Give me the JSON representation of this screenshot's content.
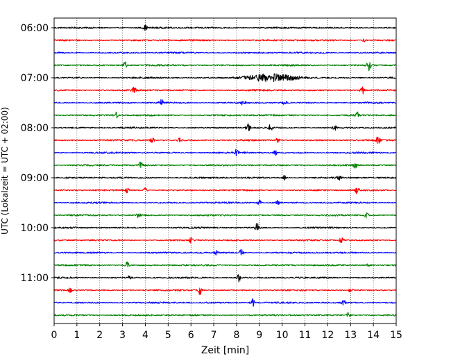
{
  "chart_data": {
    "type": "line",
    "xlabel": "Zeit  [min]",
    "ylabel": "UTC (Lokalzeit = UTC + 02:00)",
    "xlim": [
      0,
      15
    ],
    "x_ticks": [
      "0",
      "1",
      "2",
      "3",
      "4",
      "5",
      "6",
      "7",
      "8",
      "9",
      "10",
      "11",
      "12",
      "13",
      "14",
      "15"
    ],
    "y_tick_labels": [
      "06:00",
      "07:00",
      "08:00",
      "09:00",
      "10:00",
      "11:00"
    ],
    "grid": "vertical-dotted",
    "trace_colors": [
      "#000000",
      "#ff0000",
      "#0000ff",
      "#008000"
    ],
    "traces": [
      {
        "start": "06:00",
        "color": "#000000",
        "events": [
          {
            "t": 4.0,
            "a": 0.4
          }
        ]
      },
      {
        "start": "06:15",
        "color": "#ff0000",
        "events": [
          {
            "t": 13.6,
            "a": 0.3
          }
        ]
      },
      {
        "start": "06:30",
        "color": "#0000ff",
        "events": []
      },
      {
        "start": "06:45",
        "color": "#008000",
        "events": [
          {
            "t": 3.1,
            "a": 0.7
          },
          {
            "t": 13.8,
            "a": 0.9
          }
        ]
      },
      {
        "start": "07:00",
        "color": "#000000",
        "events": [
          {
            "t": 9.5,
            "a": 0.6,
            "w": 1.2
          }
        ]
      },
      {
        "start": "07:15",
        "color": "#ff0000",
        "events": [
          {
            "t": 3.5,
            "a": 0.6
          },
          {
            "t": 13.5,
            "a": 0.9
          }
        ]
      },
      {
        "start": "07:30",
        "color": "#0000ff",
        "events": [
          {
            "t": 4.7,
            "a": 0.6
          },
          {
            "t": 8.3,
            "a": 0.5
          },
          {
            "t": 10.1,
            "a": 0.4
          }
        ]
      },
      {
        "start": "07:45",
        "color": "#008000",
        "events": [
          {
            "t": 2.7,
            "a": 0.6
          },
          {
            "t": 13.3,
            "a": 0.5
          }
        ]
      },
      {
        "start": "08:00",
        "color": "#000000",
        "events": [
          {
            "t": 8.5,
            "a": 0.9
          },
          {
            "t": 9.5,
            "a": 0.7
          },
          {
            "t": 12.3,
            "a": 0.4
          }
        ]
      },
      {
        "start": "08:15",
        "color": "#ff0000",
        "events": [
          {
            "t": 4.3,
            "a": 0.5
          },
          {
            "t": 5.5,
            "a": 0.4
          },
          {
            "t": 9.8,
            "a": 0.4
          },
          {
            "t": 14.2,
            "a": 0.6
          }
        ]
      },
      {
        "start": "08:30",
        "color": "#0000ff",
        "events": [
          {
            "t": 8.0,
            "a": 0.6
          },
          {
            "t": 9.7,
            "a": 0.4
          }
        ]
      },
      {
        "start": "08:45",
        "color": "#008000",
        "events": [
          {
            "t": 3.8,
            "a": 0.6
          },
          {
            "t": 13.2,
            "a": 0.4
          }
        ]
      },
      {
        "start": "09:00",
        "color": "#000000",
        "events": [
          {
            "t": 10.1,
            "a": 0.4
          },
          {
            "t": 12.5,
            "a": 0.4
          }
        ]
      },
      {
        "start": "09:15",
        "color": "#ff0000",
        "events": [
          {
            "t": 3.2,
            "a": 0.4
          },
          {
            "t": 4.0,
            "a": 0.4
          },
          {
            "t": 13.3,
            "a": 0.8
          }
        ]
      },
      {
        "start": "09:30",
        "color": "#0000ff",
        "events": [
          {
            "t": 9.0,
            "a": 0.5
          },
          {
            "t": 9.8,
            "a": 0.4
          }
        ]
      },
      {
        "start": "09:45",
        "color": "#008000",
        "events": [
          {
            "t": 3.7,
            "a": 0.4
          },
          {
            "t": 13.7,
            "a": 0.5
          }
        ]
      },
      {
        "start": "10:00",
        "color": "#000000",
        "events": [
          {
            "t": 8.9,
            "a": 0.8
          }
        ]
      },
      {
        "start": "10:15",
        "color": "#ff0000",
        "events": [
          {
            "t": 6.0,
            "a": 0.4
          },
          {
            "t": 12.6,
            "a": 0.7
          }
        ]
      },
      {
        "start": "10:30",
        "color": "#0000ff",
        "events": [
          {
            "t": 7.1,
            "a": 0.5
          },
          {
            "t": 8.2,
            "a": 0.6
          }
        ]
      },
      {
        "start": "10:45",
        "color": "#008000",
        "events": [
          {
            "t": 3.2,
            "a": 0.6
          },
          {
            "t": 13.8,
            "a": 0.5
          }
        ]
      },
      {
        "start": "11:00",
        "color": "#000000",
        "events": [
          {
            "t": 8.1,
            "a": 0.7
          },
          {
            "t": 3.3,
            "a": 0.3
          }
        ]
      },
      {
        "start": "11:15",
        "color": "#ff0000",
        "events": [
          {
            "t": 0.7,
            "a": 0.5
          },
          {
            "t": 6.4,
            "a": 0.8
          },
          {
            "t": 13.0,
            "a": 0.4
          }
        ]
      },
      {
        "start": "11:30",
        "color": "#0000ff",
        "events": [
          {
            "t": 8.7,
            "a": 0.8
          },
          {
            "t": 12.7,
            "a": 0.4
          }
        ]
      },
      {
        "start": "11:45",
        "color": "#008000",
        "events": [
          {
            "t": 12.9,
            "a": 0.6
          }
        ]
      }
    ]
  }
}
